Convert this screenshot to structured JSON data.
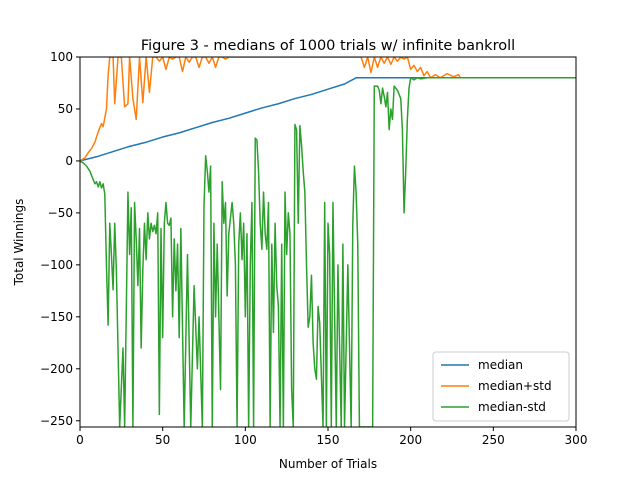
{
  "chart_data": {
    "type": "line",
    "title": "Figure 3 - medians of 1000 trials w/ infinite bankroll",
    "xlabel": "Number of Trials",
    "ylabel": "Total Winnings",
    "xlim": [
      0,
      300
    ],
    "ylim": [
      -256,
      100
    ],
    "xticks": [
      0,
      50,
      100,
      150,
      200,
      250,
      300
    ],
    "yticks": [
      -250,
      -200,
      -150,
      -100,
      -50,
      0,
      50,
      100
    ],
    "grid": false,
    "legend_position": "lower-right",
    "series": [
      {
        "name": "median",
        "color": "#1f77b4",
        "points": [
          [
            0,
            0
          ],
          [
            10,
            4
          ],
          [
            20,
            9
          ],
          [
            30,
            14
          ],
          [
            40,
            18
          ],
          [
            50,
            23
          ],
          [
            60,
            27
          ],
          [
            70,
            32
          ],
          [
            80,
            37
          ],
          [
            90,
            41
          ],
          [
            100,
            46
          ],
          [
            110,
            51
          ],
          [
            120,
            55
          ],
          [
            130,
            60
          ],
          [
            140,
            64
          ],
          [
            150,
            69
          ],
          [
            160,
            74
          ],
          [
            167,
            80
          ],
          [
            200,
            80
          ],
          [
            230,
            80
          ],
          [
            250,
            80
          ],
          [
            300,
            80
          ]
        ]
      },
      {
        "name": "median+std",
        "color": "#ff7f0e",
        "points": [
          [
            0,
            0
          ],
          [
            3,
            3
          ],
          [
            5,
            8
          ],
          [
            7,
            12
          ],
          [
            9,
            18
          ],
          [
            11,
            28
          ],
          [
            13,
            36
          ],
          [
            14,
            33
          ],
          [
            16,
            50
          ],
          [
            17,
            82
          ],
          [
            18,
            100
          ],
          [
            20,
            100
          ],
          [
            21,
            55
          ],
          [
            23,
            100
          ],
          [
            25,
            100
          ],
          [
            27,
            52
          ],
          [
            29,
            55
          ],
          [
            30,
            100
          ],
          [
            32,
            60
          ],
          [
            34,
            40
          ],
          [
            36,
            100
          ],
          [
            38,
            56
          ],
          [
            40,
            100
          ],
          [
            42,
            66
          ],
          [
            44,
            100
          ],
          [
            46,
            100
          ],
          [
            48,
            96
          ],
          [
            50,
            100
          ],
          [
            52,
            88
          ],
          [
            54,
            100
          ],
          [
            56,
            98
          ],
          [
            58,
            100
          ],
          [
            60,
            100
          ],
          [
            62,
            86
          ],
          [
            64,
            100
          ],
          [
            66,
            95
          ],
          [
            68,
            100
          ],
          [
            70,
            100
          ],
          [
            72,
            90
          ],
          [
            74,
            100
          ],
          [
            76,
            100
          ],
          [
            78,
            94
          ],
          [
            80,
            100
          ],
          [
            82,
            90
          ],
          [
            84,
            100
          ],
          [
            86,
            100
          ],
          [
            88,
            98
          ],
          [
            90,
            100
          ],
          [
            95,
            100
          ],
          [
            100,
            100
          ],
          [
            105,
            100
          ],
          [
            110,
            100
          ],
          [
            115,
            100
          ],
          [
            120,
            100
          ],
          [
            125,
            100
          ],
          [
            130,
            100
          ],
          [
            135,
            100
          ],
          [
            140,
            100
          ],
          [
            145,
            100
          ],
          [
            150,
            100
          ],
          [
            155,
            100
          ],
          [
            160,
            100
          ],
          [
            165,
            100
          ],
          [
            170,
            100
          ],
          [
            172,
            90
          ],
          [
            174,
            100
          ],
          [
            176,
            85
          ],
          [
            178,
            100
          ],
          [
            180,
            90
          ],
          [
            182,
            100
          ],
          [
            184,
            94
          ],
          [
            186,
            100
          ],
          [
            188,
            93
          ],
          [
            190,
            100
          ],
          [
            192,
            96
          ],
          [
            194,
            100
          ],
          [
            196,
            98
          ],
          [
            198,
            100
          ],
          [
            200,
            88
          ],
          [
            202,
            92
          ],
          [
            204,
            86
          ],
          [
            206,
            90
          ],
          [
            208,
            82
          ],
          [
            210,
            86
          ],
          [
            212,
            80
          ],
          [
            215,
            83
          ],
          [
            218,
            80
          ],
          [
            222,
            84
          ],
          [
            226,
            81
          ],
          [
            229,
            83
          ],
          [
            230,
            80
          ],
          [
            250,
            80
          ],
          [
            300,
            80
          ]
        ]
      },
      {
        "name": "median-std",
        "color": "#2ca02c",
        "points": [
          [
            0,
            0
          ],
          [
            2,
            -2
          ],
          [
            4,
            -5
          ],
          [
            6,
            -10
          ],
          [
            8,
            -18
          ],
          [
            9,
            -22
          ],
          [
            10,
            -20
          ],
          [
            11,
            -25
          ],
          [
            12,
            -20
          ],
          [
            13,
            -26
          ],
          [
            14,
            -22
          ],
          [
            15,
            -32
          ],
          [
            16,
            -100
          ],
          [
            17,
            -158
          ],
          [
            18,
            -60
          ],
          [
            19,
            -90
          ],
          [
            20,
            -124
          ],
          [
            21,
            -60
          ],
          [
            22,
            -105
          ],
          [
            24,
            -256
          ],
          [
            26,
            -180
          ],
          [
            27,
            -256
          ],
          [
            29,
            -30
          ],
          [
            30,
            -90
          ],
          [
            31,
            -45
          ],
          [
            32,
            -256
          ],
          [
            33,
            -40
          ],
          [
            34,
            -75
          ],
          [
            35,
            -120
          ],
          [
            36,
            -65
          ],
          [
            37,
            -180
          ],
          [
            38,
            -105
          ],
          [
            39,
            -60
          ],
          [
            40,
            -95
          ],
          [
            41,
            -50
          ],
          [
            42,
            -75
          ],
          [
            43,
            -60
          ],
          [
            44,
            -68
          ],
          [
            45,
            -62
          ],
          [
            46,
            -70
          ],
          [
            47,
            -50
          ],
          [
            48,
            -244
          ],
          [
            49,
            -65
          ],
          [
            50,
            -170
          ],
          [
            51,
            -60
          ],
          [
            52,
            -40
          ],
          [
            53,
            -60
          ],
          [
            54,
            -62
          ],
          [
            55,
            -55
          ],
          [
            56,
            -150
          ],
          [
            57,
            -75
          ],
          [
            58,
            -125
          ],
          [
            59,
            -80
          ],
          [
            60,
            -170
          ],
          [
            61,
            -65
          ],
          [
            63,
            -256
          ],
          [
            65,
            -90
          ],
          [
            67,
            -256
          ],
          [
            69,
            -120
          ],
          [
            71,
            -200
          ],
          [
            72,
            -150
          ],
          [
            74,
            -256
          ],
          [
            75,
            -44
          ],
          [
            76,
            5
          ],
          [
            77,
            -10
          ],
          [
            78,
            -30
          ],
          [
            79,
            -5
          ],
          [
            80,
            -256
          ],
          [
            81,
            -60
          ],
          [
            82,
            -150
          ],
          [
            83,
            -80
          ],
          [
            85,
            -220
          ],
          [
            86,
            -20
          ],
          [
            87,
            -60
          ],
          [
            88,
            -40
          ],
          [
            89,
            -130
          ],
          [
            90,
            -70
          ],
          [
            92,
            -40
          ],
          [
            93,
            -60
          ],
          [
            94,
            -100
          ],
          [
            95,
            -256
          ],
          [
            96,
            -80
          ],
          [
            97,
            -50
          ],
          [
            98,
            -95
          ],
          [
            99,
            -60
          ],
          [
            100,
            -150
          ],
          [
            101,
            -70
          ],
          [
            102,
            -256
          ],
          [
            103,
            -100
          ],
          [
            104,
            -40
          ],
          [
            105,
            -256
          ],
          [
            106,
            22
          ],
          [
            107,
            20
          ],
          [
            108,
            -10
          ],
          [
            109,
            -60
          ],
          [
            110,
            -85
          ],
          [
            111,
            -30
          ],
          [
            112,
            -70
          ],
          [
            113,
            -85
          ],
          [
            114,
            -40
          ],
          [
            115,
            -256
          ],
          [
            116,
            -80
          ],
          [
            117,
            -165
          ],
          [
            118,
            -60
          ],
          [
            119,
            -120
          ],
          [
            120,
            -140
          ],
          [
            121,
            -256
          ],
          [
            122,
            -80
          ],
          [
            123,
            -256
          ],
          [
            124,
            -30
          ],
          [
            125,
            -90
          ],
          [
            126,
            -50
          ],
          [
            127,
            -70
          ],
          [
            128,
            -220
          ],
          [
            129,
            -256
          ],
          [
            130,
            35
          ],
          [
            131,
            30
          ],
          [
            132,
            -60
          ],
          [
            133,
            34
          ],
          [
            134,
            15
          ],
          [
            135,
            -10
          ],
          [
            136,
            -30
          ],
          [
            137,
            -100
          ],
          [
            138,
            -160
          ],
          [
            139,
            -150
          ],
          [
            140,
            -110
          ],
          [
            141,
            -175
          ],
          [
            142,
            -200
          ],
          [
            143,
            -210
          ],
          [
            144,
            -140
          ],
          [
            145,
            -156
          ],
          [
            146,
            -207
          ],
          [
            147,
            -256
          ],
          [
            148,
            -40
          ],
          [
            149,
            -256
          ],
          [
            150,
            -60
          ],
          [
            151,
            -90
          ],
          [
            152,
            -256
          ],
          [
            153,
            -40
          ],
          [
            155,
            -256
          ],
          [
            156,
            -100
          ],
          [
            158,
            -256
          ],
          [
            159,
            -80
          ],
          [
            160,
            -256
          ],
          [
            162,
            -100
          ],
          [
            164,
            -256
          ],
          [
            165,
            -60
          ],
          [
            166,
            -5
          ],
          [
            167,
            -30
          ],
          [
            168,
            -80
          ],
          [
            169,
            -256
          ],
          [
            170,
            -256
          ],
          [
            172,
            -256
          ],
          [
            174,
            -256
          ],
          [
            176,
            -256
          ],
          [
            177,
            -256
          ],
          [
            178,
            72
          ],
          [
            180,
            72
          ],
          [
            181,
            68
          ],
          [
            182,
            55
          ],
          [
            183,
            70
          ],
          [
            184,
            62
          ],
          [
            185,
            52
          ],
          [
            186,
            66
          ],
          [
            187,
            30
          ],
          [
            188,
            50
          ],
          [
            189,
            40
          ],
          [
            190,
            72
          ],
          [
            192,
            68
          ],
          [
            194,
            60
          ],
          [
            195,
            30
          ],
          [
            196,
            -50
          ],
          [
            197,
            -10
          ],
          [
            198,
            40
          ],
          [
            199,
            70
          ],
          [
            200,
            80
          ],
          [
            202,
            78
          ],
          [
            204,
            80
          ],
          [
            206,
            79
          ],
          [
            210,
            80
          ],
          [
            215,
            80
          ],
          [
            220,
            80
          ],
          [
            230,
            80
          ],
          [
            250,
            80
          ],
          [
            300,
            80
          ]
        ]
      }
    ]
  }
}
